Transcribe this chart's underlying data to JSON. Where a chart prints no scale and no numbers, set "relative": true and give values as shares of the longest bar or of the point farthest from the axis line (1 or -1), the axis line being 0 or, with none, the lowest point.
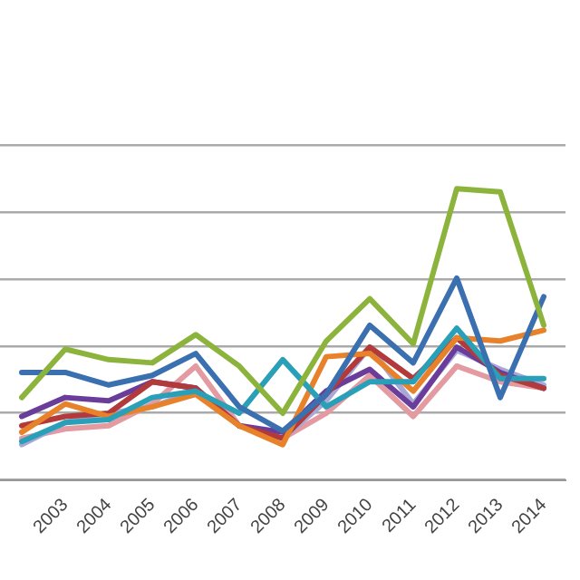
{
  "chart_data": {
    "type": "line",
    "relative": true,
    "grid": "y",
    "marker": "none",
    "line_style": "solid",
    "legend": false,
    "categories": [
      null,
      "2003",
      "2004",
      "2005",
      "2006",
      "2007",
      "2008",
      "2009",
      "2010",
      "2011",
      "2012",
      "2013",
      "2014"
    ],
    "series": [
      {
        "color": "#8cb43c",
        "values": [
          0.283,
          0.449,
          0.413,
          0.402,
          0.499,
          0.391,
          0.229,
          0.477,
          0.622,
          0.467,
          1,
          0.989,
          0.531
        ]
      },
      {
        "color": "#3a6fb0",
        "values": [
          0.369,
          0.369,
          0.326,
          0.359,
          0.434,
          0.251,
          0.168,
          0.294,
          0.531,
          0.402,
          0.693,
          0.283,
          0.629
        ]
      },
      {
        "color": "#2aa0b8",
        "values": [
          0.132,
          0.197,
          0.207,
          0.283,
          0.305,
          0.229,
          0.413,
          0.251,
          0.337,
          0.337,
          0.521,
          0.348,
          0.348
        ]
      },
      {
        "color": "#e8822a",
        "values": [
          0.164,
          0.261,
          0.218,
          0.251,
          0.294,
          0.186,
          0.121,
          0.423,
          0.434,
          0.305,
          0.488,
          0.477,
          0.514
        ]
      },
      {
        "color": "#b23a3a",
        "values": [
          0.186,
          0.218,
          0.229,
          0.337,
          0.315,
          0.186,
          0.143,
          0.294,
          0.456,
          0.348,
          0.488,
          0.359,
          0.315
        ]
      },
      {
        "color": "#6a3d9a",
        "values": [
          0.218,
          0.283,
          0.272,
          0.337,
          0.315,
          0.186,
          0.164,
          0.305,
          0.38,
          0.251,
          0.456,
          0.369,
          0.315
        ]
      },
      {
        "color": "#a8a8d8",
        "values": [
          0.121,
          0.197,
          0.229,
          0.251,
          0.305,
          0.186,
          0.143,
          0.272,
          0.456,
          0.261,
          0.445,
          0.38,
          0.326
        ]
      },
      {
        "color": "#e39aa0",
        "values": [
          0.143,
          0.175,
          0.186,
          0.261,
          0.391,
          0.186,
          0.143,
          0.229,
          0.359,
          0.218,
          0.391,
          0.337,
          0.315
        ]
      }
    ]
  }
}
